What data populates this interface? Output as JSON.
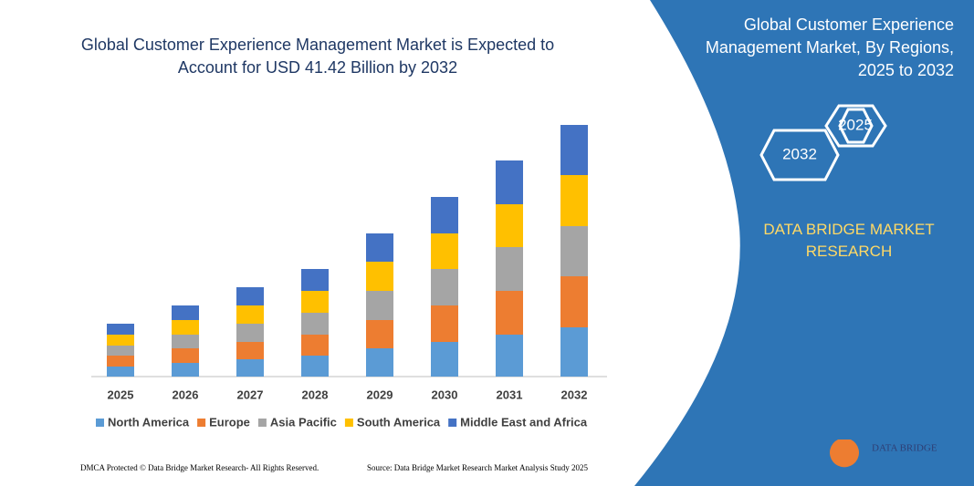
{
  "chart_data": {
    "type": "stacked-bar",
    "title": "Global Customer Experience Management Market is Expected to Account for USD 41.42 Billion by 2032",
    "categories": [
      "2025",
      "2026",
      "2027",
      "2028",
      "2029",
      "2030",
      "2031",
      "2032"
    ],
    "series": [
      {
        "name": "North America",
        "color": "#5b9bd5",
        "values": [
          11,
          15,
          19,
          23,
          31,
          38,
          46,
          54
        ]
      },
      {
        "name": "Europe",
        "color": "#ed7d31",
        "values": [
          12,
          16,
          19,
          23,
          31,
          40,
          48,
          56
        ]
      },
      {
        "name": "Asia Pacific",
        "color": "#a5a5a5",
        "values": [
          11,
          15,
          20,
          24,
          32,
          40,
          48,
          55
        ]
      },
      {
        "name": "South America",
        "color": "#ffc000",
        "values": [
          12,
          16,
          20,
          24,
          32,
          39,
          47,
          56
        ]
      },
      {
        "name": "Middle East and Africa",
        "color": "#4472c4",
        "values": [
          12,
          16,
          20,
          24,
          31,
          40,
          48,
          55
        ]
      }
    ]
  },
  "panel": {
    "title": "Global Customer Experience Management Market, By Regions, 2025 to 2032",
    "badges": [
      "2025",
      "2032"
    ],
    "brand": "DATA BRIDGE MARKET RESEARCH",
    "logo": "DATA BRIDGE"
  },
  "footer": {
    "left": "DMCA Protected © Data Bridge Market Research- All Rights Reserved.",
    "right": "Source: Data Bridge Market Research Market Analysis Study 2025"
  }
}
